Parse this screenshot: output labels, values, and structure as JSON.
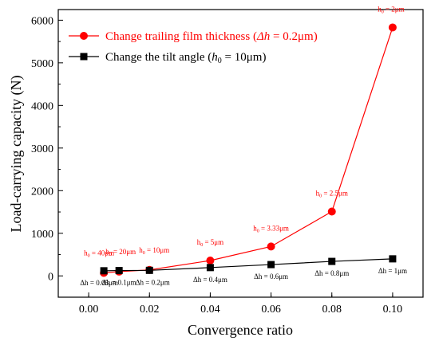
{
  "chart_data": {
    "type": "line",
    "xlabel": "Convergence ratio",
    "ylabel": "Load-carrying capacity (N)",
    "xlim": [
      -0.01,
      0.11
    ],
    "ylim": [
      -500,
      6250
    ],
    "x_ticks": [
      "0.00",
      "0.02",
      "0.04",
      "0.06",
      "0.08",
      "0.10"
    ],
    "y_ticks": [
      "0",
      "1000",
      "2000",
      "3000",
      "4000",
      "5000",
      "6000"
    ],
    "legend_position": "top-left",
    "series": [
      {
        "name": "Change trailing film thickness (Δh = 0.2μm)",
        "color": "#ff0000",
        "marker": "circle",
        "x": [
          0.005,
          0.01,
          0.02,
          0.04,
          0.06,
          0.08,
          0.1
        ],
        "y": [
          70,
          100,
          140,
          360,
          690,
          1510,
          5830
        ],
        "labels": [
          "h0 = 40μm",
          "h0 = 20μm",
          "h0 = 10μm",
          "h0 = 5μm",
          "h0 = 3.33μm",
          "h0 = 2.5μm",
          "h0 = 2μm"
        ]
      },
      {
        "name": "Change the tilt angle (h0 = 10μm)",
        "color": "#000000",
        "marker": "square",
        "x": [
          0.005,
          0.01,
          0.02,
          0.04,
          0.06,
          0.08,
          0.1
        ],
        "y": [
          120,
          125,
          130,
          195,
          265,
          340,
          400
        ],
        "labels": [
          "Δh = 0.05μm",
          "Δh = 0.1μm",
          "Δh = 0.2μm",
          "Δh = 0.4μm",
          "Δh = 0.6μm",
          "Δh = 0.8μm",
          "Δh = 1μm"
        ]
      }
    ]
  }
}
